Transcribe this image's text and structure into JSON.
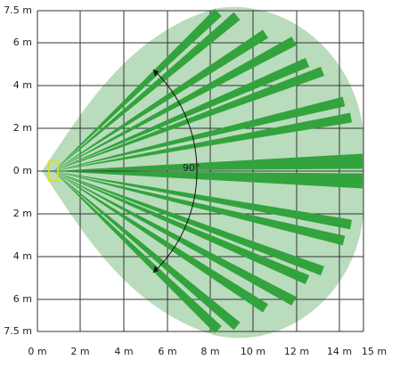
{
  "y_axis": {
    "labels": [
      "7.5 m",
      "6 m",
      "4 m",
      "2 m",
      "0 m",
      "2 m",
      "4 m",
      "6 m",
      "7.5 m"
    ]
  },
  "x_axis": {
    "labels": [
      "0 m",
      "2 m",
      "4 m",
      "6 m",
      "8 m",
      "10 m",
      "12 m",
      "14 m",
      "15 m"
    ]
  },
  "angle_label": "90°"
}
